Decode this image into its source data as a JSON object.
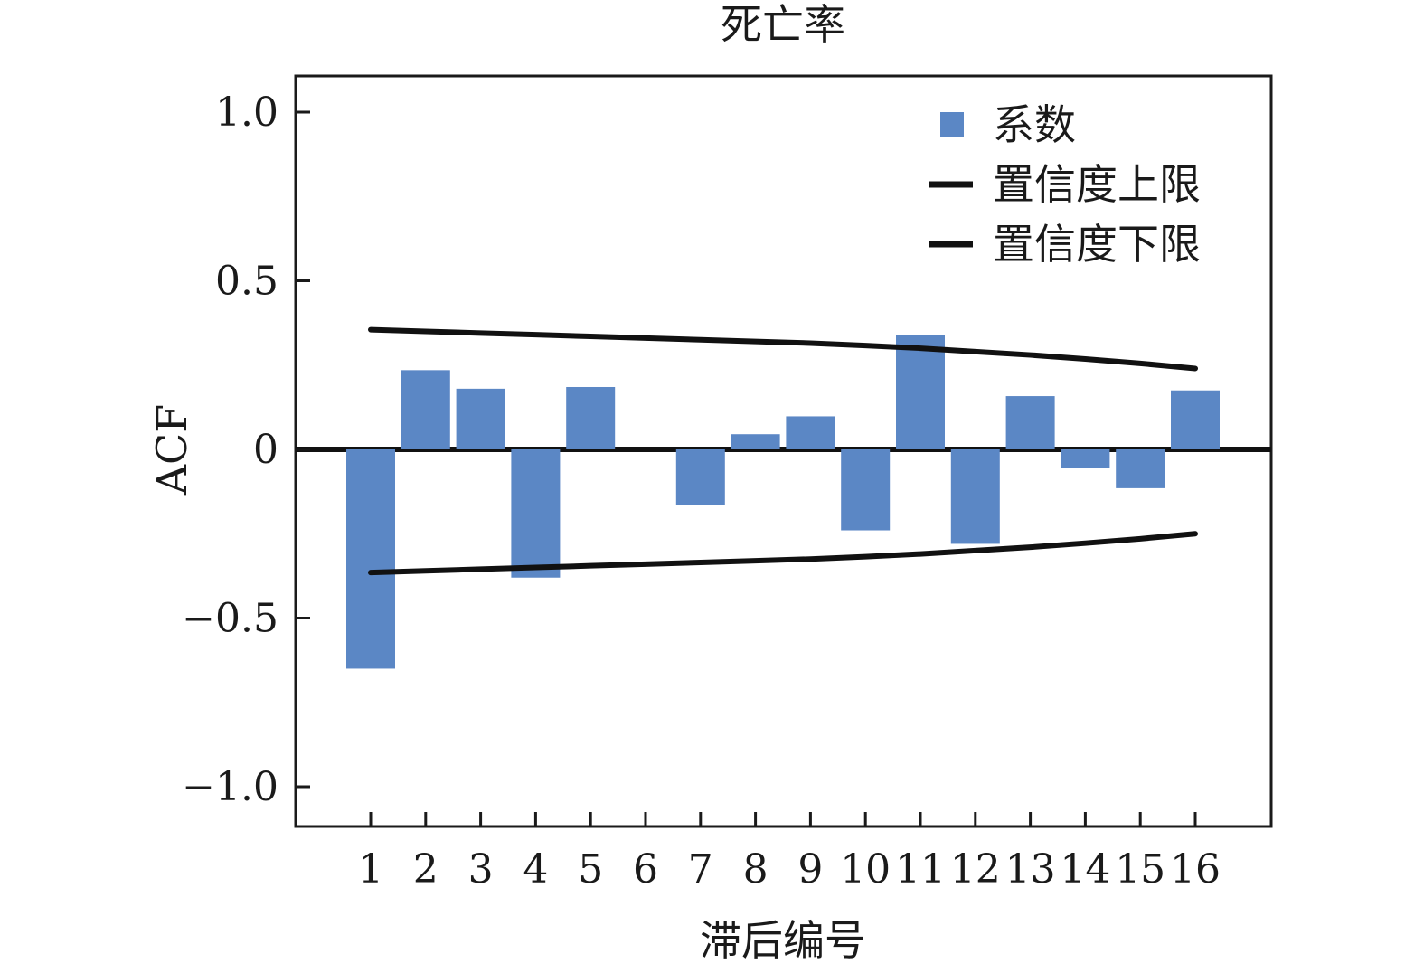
{
  "chart_data": {
    "type": "bar",
    "title": "死亡率",
    "xlabel": "滞后编号",
    "ylabel": "ACF",
    "categories": [
      "1",
      "2",
      "3",
      "4",
      "5",
      "6",
      "7",
      "8",
      "9",
      "10",
      "11",
      "12",
      "13",
      "14",
      "15",
      "16"
    ],
    "series": [
      {
        "name": "系数",
        "values": [
          -0.65,
          0.235,
          0.18,
          -0.38,
          0.185,
          0.0,
          -0.165,
          0.045,
          0.098,
          -0.24,
          0.34,
          -0.28,
          0.158,
          -0.055,
          -0.115,
          0.175
        ]
      }
    ],
    "confidence_upper": {
      "name": "置信度上限",
      "values": [
        0.355,
        0.35,
        0.345,
        0.34,
        0.335,
        0.33,
        0.325,
        0.32,
        0.315,
        0.308,
        0.3,
        0.29,
        0.28,
        0.268,
        0.255,
        0.24
      ]
    },
    "confidence_lower": {
      "name": "置信度下限",
      "values": [
        -0.365,
        -0.36,
        -0.355,
        -0.35,
        -0.345,
        -0.34,
        -0.335,
        -0.33,
        -0.325,
        -0.318,
        -0.31,
        -0.3,
        -0.29,
        -0.278,
        -0.265,
        -0.25
      ]
    },
    "yticks": [
      "1.0",
      "0.5",
      "0",
      "−0.5",
      "−1.0"
    ],
    "ytick_values": [
      1.0,
      0.5,
      0,
      -0.5,
      -1.0
    ],
    "ylim": [
      -1.11,
      1.11
    ],
    "legend_position": "top-right",
    "grid": false,
    "colors": {
      "bar": "#5b87c5",
      "line": "#111111",
      "zero_line": "#111111"
    }
  }
}
